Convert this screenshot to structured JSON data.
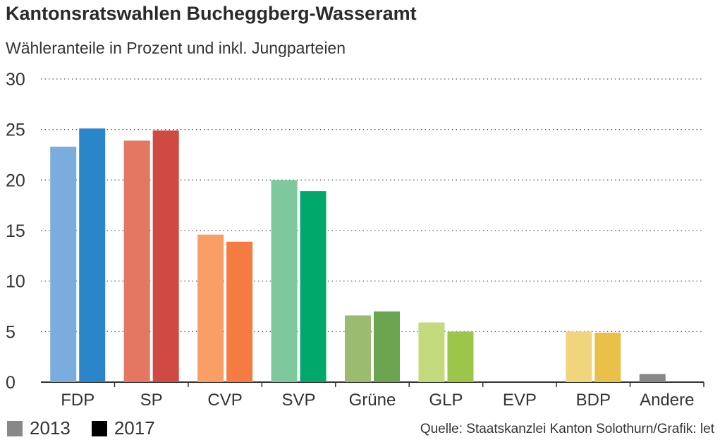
{
  "title": "Kantonsratswahlen Bucheggberg-Wasseramt",
  "subtitle": "Wähleranteile in Prozent und inkl. Jungparteien",
  "source": "Quelle: Staatskanzlei Kanton Solothurn/Grafik: let",
  "legend": [
    {
      "label": "2013",
      "color": "#888888"
    },
    {
      "label": "2017",
      "color": "#000000"
    }
  ],
  "chart_data": {
    "type": "bar",
    "title": "Kantonsratswahlen Bucheggberg-Wasseramt",
    "subtitle": "Wähleranteile in Prozent und inkl. Jungparteien",
    "xlabel": "",
    "ylabel": "",
    "ylim": [
      0,
      30
    ],
    "yticks": [
      0,
      5,
      10,
      15,
      20,
      25,
      30
    ],
    "grid": true,
    "categories": [
      "FDP",
      "SP",
      "CVP",
      "SVP",
      "Grüne",
      "GLP",
      "EVP",
      "BDP",
      "Andere"
    ],
    "series": [
      {
        "name": "2013",
        "values": [
          23.3,
          23.9,
          14.6,
          20.0,
          6.6,
          5.9,
          0,
          5.0,
          0.8
        ]
      },
      {
        "name": "2017",
        "values": [
          25.1,
          24.9,
          13.9,
          18.9,
          7.0,
          5.0,
          0,
          4.9,
          0
        ]
      }
    ],
    "colors_2013": [
      "#7aaddd",
      "#e47762",
      "#f99e65",
      "#7fc89d",
      "#9bbc6f",
      "#c3d97c",
      "#cccccc",
      "#f1d57d",
      "#888888"
    ],
    "colors_2017": [
      "#2a86c9",
      "#d04a43",
      "#f47c43",
      "#00a86b",
      "#6ba54f",
      "#9bc64a",
      "#999999",
      "#e8c04a",
      "#555555"
    ]
  }
}
